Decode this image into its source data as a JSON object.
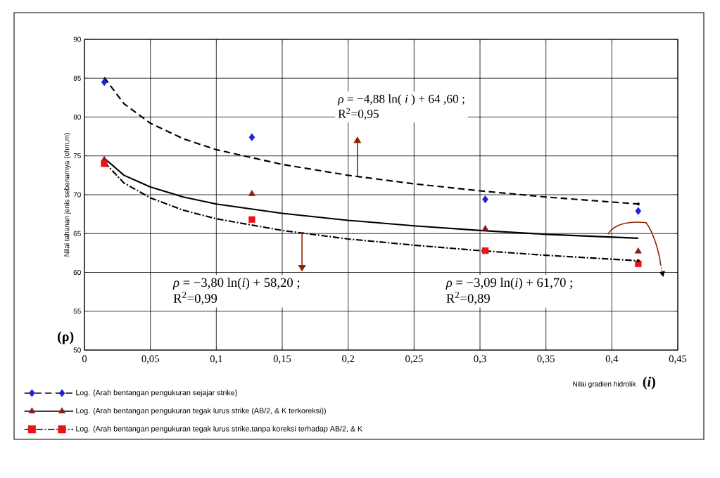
{
  "chart_data": {
    "type": "scatter",
    "xlabel": "Nilai gradien hidrolik",
    "ylabel": "Nilai tahanan jenis sebenarnya (ohm.m)",
    "xlim": [
      0,
      0.45
    ],
    "ylim": [
      50,
      90
    ],
    "xticks": [
      0,
      {
        "value": 0.05,
        "label": "0,05"
      },
      {
        "value": 0.1,
        "label": "0,1"
      },
      {
        "value": 0.15,
        "label": "0,15"
      },
      {
        "value": 0.2,
        "label": "0,2"
      },
      {
        "value": 0.25,
        "label": "0,25"
      },
      {
        "value": 0.3,
        "label": "0,3"
      },
      {
        "value": 0.35,
        "label": "0,35"
      },
      {
        "value": 0.4,
        "label": "0,4"
      },
      {
        "value": 0.45,
        "label": "0,45"
      }
    ],
    "yticks": [
      50,
      55,
      60,
      65,
      70,
      75,
      80,
      85,
      90
    ],
    "grid": true,
    "legend": "bottom",
    "x": [
      0.015,
      0.127,
      0.304,
      0.42
    ],
    "series": [
      {
        "type": "scatter",
        "name": "Log. (Arah bentangan pengukuran sejajar strike)",
        "marker": "diamond",
        "color": "#1f1fdc",
        "values": [
          84.5,
          77.4,
          69.4,
          67.9
        ]
      },
      {
        "type": "line",
        "color": "#000000",
        "line_style": "dashed",
        "marker": "none",
        "x": [
          0.015,
          0.03,
          0.05,
          0.075,
          0.1,
          0.15,
          0.2,
          0.25,
          0.3,
          0.35,
          0.42
        ],
        "values": [
          85.1,
          81.7,
          79.2,
          77.2,
          75.8,
          73.9,
          72.5,
          71.4,
          70.5,
          69.7,
          68.8
        ]
      },
      {
        "type": "scatter",
        "name": "Log. (Arah bentangan pengukuran tegak lurus strike (AB/2, & K terkoreksi))",
        "marker": "triangle",
        "color": "#8b1a1a",
        "values": [
          74.5,
          70.1,
          65.6,
          62.7
        ]
      },
      {
        "type": "line",
        "color": "#000000",
        "line_style": "solid",
        "marker": "none",
        "x": [
          0.015,
          0.03,
          0.05,
          0.075,
          0.1,
          0.15,
          0.2,
          0.25,
          0.3,
          0.35,
          0.42
        ],
        "values": [
          74.7,
          72.5,
          71.0,
          69.7,
          68.8,
          67.6,
          66.7,
          66.0,
          65.4,
          64.9,
          64.4
        ]
      },
      {
        "type": "scatter",
        "name": "Log. (Arah bentangan pengukuran tegak lurus strike,tanpa koreksi terhadap AB/2, & K",
        "marker": "square",
        "color": "#e8141a",
        "values": [
          74.0,
          66.8,
          62.8,
          61.1
        ]
      },
      {
        "type": "line",
        "color": "#000000",
        "line_style": "dashdot",
        "marker": "none",
        "x": [
          0.015,
          0.03,
          0.05,
          0.075,
          0.1,
          0.15,
          0.2,
          0.25,
          0.3,
          0.35,
          0.42
        ],
        "values": [
          74.2,
          71.5,
          69.6,
          68.0,
          66.9,
          65.4,
          64.3,
          63.5,
          62.8,
          62.2,
          61.5
        ]
      }
    ],
    "annotations": [
      "*ρ* = −4,88 ln( *i* ) + 64 ,60 ;",
      "R$^{2}$=0,95",
      {
        "text": "*ρ* = −3,80 ln(*i*) + 58,20 ;",
        "x": 0.165,
        "y": 65.1
      },
      "R$^{2}$=0,99",
      "*ρ* = −3,09 ln(*i*) + 61,70 ;",
      "R$^{2}$=0,89",
      "(ρ)",
      "(*i*)"
    ]
  }
}
